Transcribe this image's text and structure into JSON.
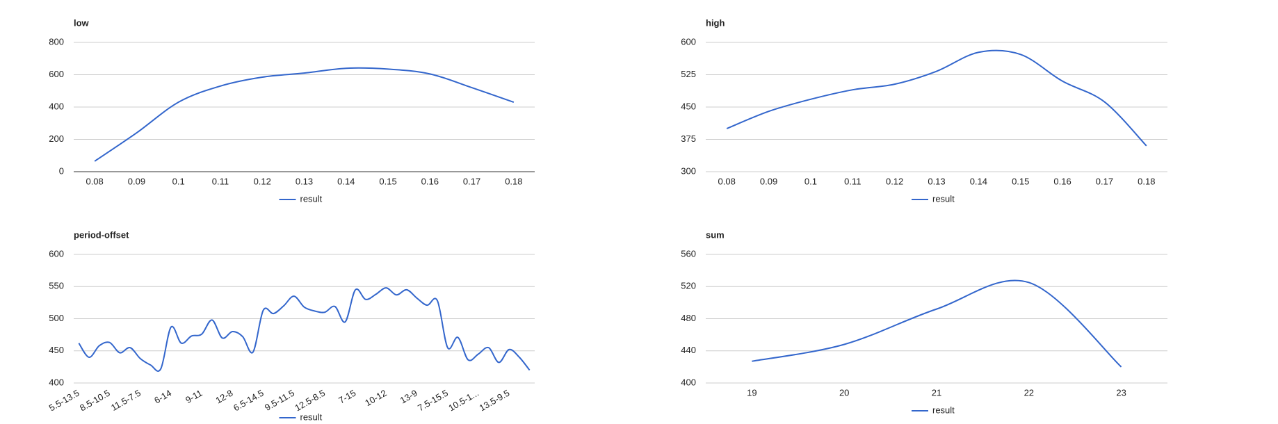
{
  "chart_data": [
    {
      "type": "line",
      "title": "low",
      "categories": [
        "0.08",
        "0.09",
        "0.1",
        "0.11",
        "0.12",
        "0.13",
        "0.14",
        "0.15",
        "0.16",
        "0.17",
        "0.18"
      ],
      "series": [
        {
          "name": "result",
          "color": "#3366cc",
          "values": [
            65,
            240,
            430,
            530,
            585,
            610,
            640,
            635,
            605,
            520,
            430
          ]
        }
      ],
      "ylim": [
        0,
        800
      ],
      "yticks": [
        0,
        200,
        400,
        600,
        800
      ],
      "grid": true,
      "legend": "bottom"
    },
    {
      "type": "line",
      "title": "high",
      "categories": [
        "0.08",
        "0.09",
        "0.1",
        "0.11",
        "0.12",
        "0.13",
        "0.14",
        "0.15",
        "0.16",
        "0.17",
        "0.18"
      ],
      "series": [
        {
          "name": "result",
          "color": "#3366cc",
          "values": [
            400,
            440,
            468,
            490,
            503,
            533,
            577,
            572,
            510,
            462,
            360
          ]
        }
      ],
      "ylim": [
        300,
        600
      ],
      "yticks": [
        300,
        375,
        450,
        525,
        600
      ],
      "grid": true,
      "legend": "bottom"
    },
    {
      "type": "line",
      "title": "period-offset",
      "categories": [
        "5.5-13.5",
        null,
        null,
        "8.5-10.5",
        null,
        null,
        "11.5-7.5",
        null,
        null,
        "6-14",
        null,
        null,
        "9-11",
        null,
        null,
        "12-8",
        null,
        null,
        "6.5-14.5",
        null,
        null,
        "9.5-11.5",
        null,
        null,
        "12.5-8.5",
        null,
        null,
        "7-15",
        null,
        null,
        "10-12",
        null,
        null,
        "13-9",
        null,
        null,
        "7.5-15.5",
        null,
        null,
        "10.5-1...",
        null,
        null,
        "13.5-9.5",
        null,
        null
      ],
      "series": [
        {
          "name": "result",
          "color": "#3366cc",
          "values": [
            462,
            440,
            458,
            463,
            447,
            455,
            438,
            428,
            422,
            487,
            462,
            473,
            476,
            498,
            470,
            480,
            472,
            448,
            513,
            508,
            520,
            535,
            518,
            512,
            510,
            519,
            495,
            545,
            530,
            538,
            548,
            537,
            545,
            532,
            521,
            528,
            455,
            471,
            436,
            445,
            455,
            432,
            452,
            440,
            420
          ]
        }
      ],
      "ylim": [
        400,
        600
      ],
      "yticks": [
        400,
        450,
        500,
        550,
        600
      ],
      "grid": true,
      "legend": "bottom"
    },
    {
      "type": "line",
      "title": "sum",
      "categories": [
        "19",
        "20",
        "21",
        "22",
        "23"
      ],
      "series": [
        {
          "name": "result",
          "color": "#3366cc",
          "values": [
            427,
            448,
            492,
            525,
            420
          ]
        }
      ],
      "ylim": [
        400,
        560
      ],
      "yticks": [
        400,
        440,
        480,
        520,
        560
      ],
      "grid": true,
      "legend": "bottom"
    }
  ]
}
